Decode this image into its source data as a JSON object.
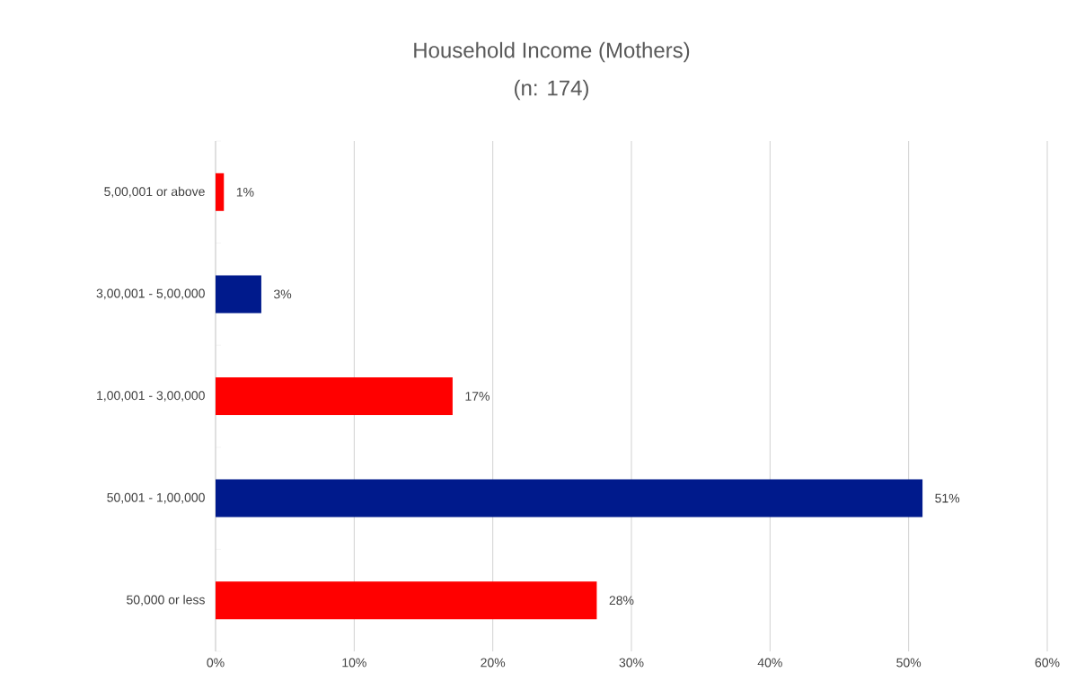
{
  "chart_data": {
    "type": "bar",
    "orientation": "horizontal",
    "title": "Household Income (Mothers)",
    "subtitle": "(n: 174)",
    "categories": [
      "5,00,001 or above",
      "3,00,001 - 5,00,000",
      "1,00,001 - 3,00,000",
      "50,001 - 1,00,000",
      "50,000 or less"
    ],
    "values": [
      0.6,
      3.3,
      17.1,
      51.0,
      27.5
    ],
    "colors": [
      "#ff0000",
      "#001a8c",
      "#ff0000",
      "#001a8c",
      "#ff0000"
    ],
    "value_labels": [
      "1%",
      "3%",
      "17%",
      "51%",
      "28%"
    ],
    "xlim": [
      0,
      60
    ],
    "xticks": [
      {
        "value": 0,
        "label": "0%"
      },
      {
        "value": 10,
        "label": "10%"
      },
      {
        "value": 20,
        "label": "20%"
      },
      {
        "value": 30,
        "label": "30%"
      },
      {
        "value": 40,
        "label": "40%"
      },
      {
        "value": 50,
        "label": "50%"
      },
      {
        "value": 60,
        "label": "60%"
      }
    ],
    "grid": "x"
  }
}
